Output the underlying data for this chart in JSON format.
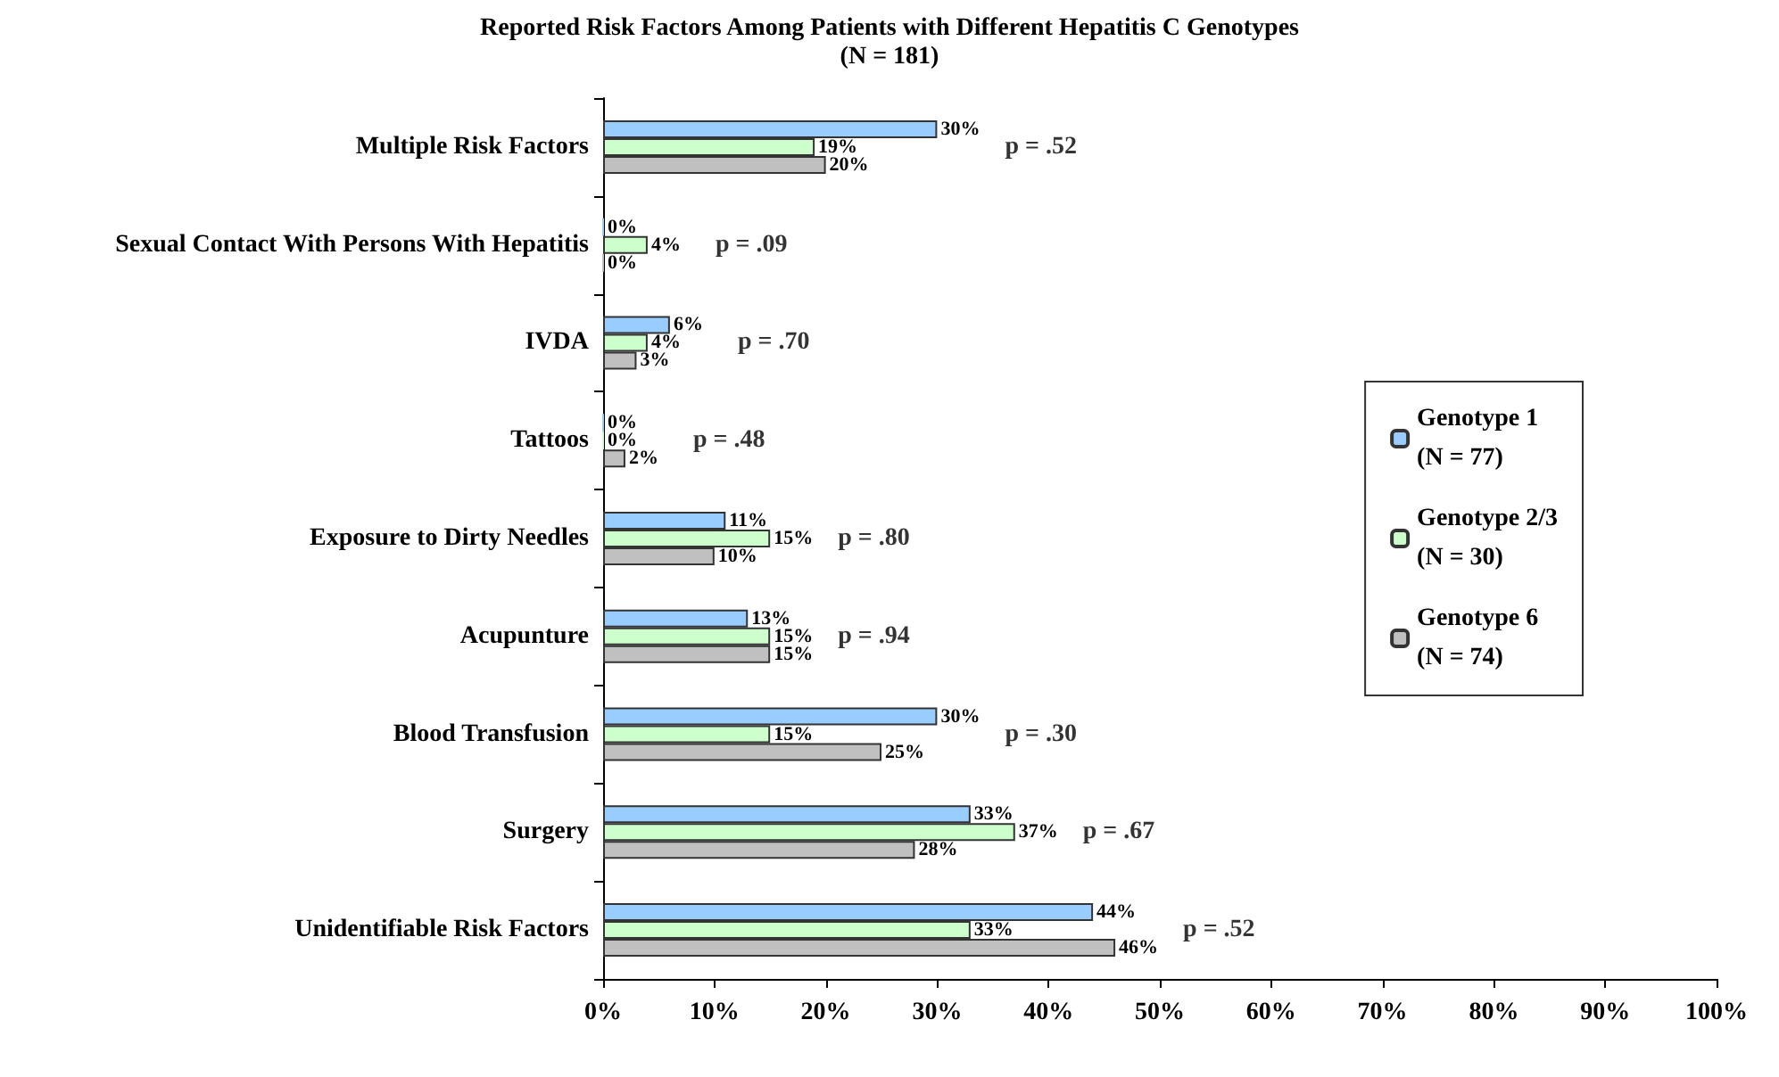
{
  "chart_data": {
    "type": "bar",
    "orientation": "horizontal",
    "title": "Reported Risk Factors Among Patients with Different Hepatitis C Genotypes",
    "subtitle": "(N = 181)",
    "categories": [
      "Multiple Risk Factors",
      "Sexual Contact With Persons With Hepatitis",
      "IVDA",
      "Tattoos",
      "Exposure to Dirty Needles",
      "Acupunture",
      "Blood Transfusion",
      "Surgery",
      "Unidentifiable Risk Factors"
    ],
    "series": [
      {
        "name": "Genotype 1\n(N = 77)",
        "color": "#99ccff",
        "values": [
          30,
          0,
          6,
          0,
          11,
          13,
          30,
          33,
          44
        ],
        "value_labels": [
          "30%",
          "0%",
          "6%",
          "0%",
          "11%",
          "13%",
          "30%",
          "33%",
          "44%"
        ]
      },
      {
        "name": "Genotype 2/3\n(N = 30)",
        "color": "#ccffcc",
        "values": [
          19,
          4,
          4,
          0,
          15,
          15,
          15,
          37,
          33
        ],
        "value_labels": [
          "19%",
          "4%",
          "4%",
          "0%",
          "15%",
          "15%",
          "15%",
          "37%",
          "33%"
        ]
      },
      {
        "name": "Genotype 6\n(N = 74)",
        "color": "#c0c0c0",
        "values": [
          20,
          0,
          3,
          2,
          10,
          15,
          25,
          28,
          46
        ],
        "value_labels": [
          "20%",
          "0%",
          "3%",
          "2%",
          "10%",
          "15%",
          "25%",
          "28%",
          "46%"
        ]
      }
    ],
    "xlim": [
      0,
      100
    ],
    "xticks": [
      {
        "value": 0,
        "label": "0%"
      },
      {
        "value": 10,
        "label": "10%"
      },
      {
        "value": 20,
        "label": "20%"
      },
      {
        "value": 30,
        "label": "30%"
      },
      {
        "value": 40,
        "label": "40%"
      },
      {
        "value": 50,
        "label": "50%"
      },
      {
        "value": 60,
        "label": "60%"
      },
      {
        "value": 70,
        "label": "70%"
      },
      {
        "value": 80,
        "label": "80%"
      },
      {
        "value": 90,
        "label": "90%"
      },
      {
        "value": 100,
        "label": "100%"
      }
    ],
    "annotations": [
      "p = .52",
      "p = .09",
      "p = .70",
      "p = .48",
      "p = .80",
      "p = .94",
      "p = .30",
      "p = .67",
      "p = .52"
    ],
    "legend": "right",
    "grid": false
  }
}
